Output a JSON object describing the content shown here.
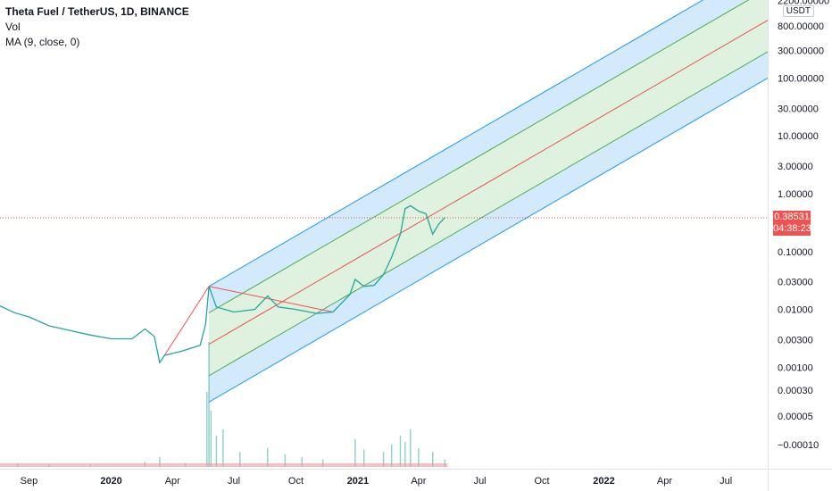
{
  "legend": {
    "title": "Theta Fuel / TetherUS, 1D, BINANCE",
    "vol": "Vol",
    "ma": "MA (9, close, 0)"
  },
  "price_axis": {
    "currency": "USDT",
    "ticks": [
      "2200.00000",
      "800.00000",
      "300.00000",
      "100.00000",
      "30.00000",
      "10.00000",
      "3.00000",
      "1.00000",
      "0.10000",
      "0.03000",
      "0.01000",
      "0.00300",
      "0.00100",
      "0.00030",
      "0.00005",
      "−0.00010"
    ],
    "last_price": "0.38531",
    "countdown": "04:38:23"
  },
  "time_axis": {
    "ticks": [
      {
        "label": "Sep",
        "bold": false
      },
      {
        "label": "2020",
        "bold": true
      },
      {
        "label": "Apr",
        "bold": false
      },
      {
        "label": "Jul",
        "bold": false
      },
      {
        "label": "Oct",
        "bold": false
      },
      {
        "label": "2021",
        "bold": true
      },
      {
        "label": "Apr",
        "bold": false
      },
      {
        "label": "Jul",
        "bold": false
      },
      {
        "label": "Oct",
        "bold": false
      },
      {
        "label": "2022",
        "bold": true
      },
      {
        "label": "Apr",
        "bold": false
      },
      {
        "label": "Jul",
        "bold": false
      }
    ]
  },
  "colors": {
    "up": "#26a69a",
    "down": "#ef5350",
    "channel_outer_fill": "#2196f3",
    "channel_inner_fill": "#4caf50",
    "median_line": "#ef5350",
    "last_price_line": "#ef5350"
  },
  "chart_data": {
    "type": "line",
    "scale": "log",
    "x_range": [
      "2019-07-20",
      "2022-09-01"
    ],
    "y_range": [
      3e-05,
      2200
    ],
    "series": [
      {
        "values": [
          [
            "2019-07-20",
            0.0115
          ],
          [
            "2019-08-10",
            0.0088
          ],
          [
            "2019-09-01",
            0.0074
          ],
          [
            "2019-10-01",
            0.0052
          ],
          [
            "2019-11-01",
            0.0043
          ],
          [
            "2019-12-01",
            0.0036
          ],
          [
            "2020-01-01",
            0.0031
          ],
          [
            "2020-02-01",
            0.0031
          ],
          [
            "2020-02-20",
            0.0046
          ],
          [
            "2020-03-05",
            0.0034
          ],
          [
            "2020-03-13",
            0.0012
          ],
          [
            "2020-03-20",
            0.0016
          ],
          [
            "2020-04-15",
            0.0019
          ],
          [
            "2020-05-12",
            0.0024
          ],
          [
            "2020-05-20",
            0.0055
          ],
          [
            "2020-05-25",
            0.025
          ],
          [
            "2020-06-05",
            0.011
          ],
          [
            "2020-07-01",
            0.009
          ],
          [
            "2020-08-01",
            0.01
          ],
          [
            "2020-08-20",
            0.017
          ],
          [
            "2020-09-05",
            0.011
          ],
          [
            "2020-10-01",
            0.01
          ],
          [
            "2020-11-01",
            0.0085
          ],
          [
            "2020-11-25",
            0.009
          ],
          [
            "2020-12-20",
            0.018
          ],
          [
            "2020-12-28",
            0.033
          ],
          [
            "2021-01-10",
            0.025
          ],
          [
            "2021-01-25",
            0.026
          ],
          [
            "2021-02-08",
            0.04
          ],
          [
            "2021-02-20",
            0.08
          ],
          [
            "2021-03-05",
            0.2
          ],
          [
            "2021-03-12",
            0.55
          ],
          [
            "2021-03-20",
            0.62
          ],
          [
            "2021-04-01",
            0.5
          ],
          [
            "2021-04-12",
            0.45
          ],
          [
            "2021-04-22",
            0.2
          ],
          [
            "2021-05-01",
            0.3
          ],
          [
            "2021-05-10",
            0.3853
          ]
        ]
      }
    ],
    "channel": {
      "start_date": "2020-05-25",
      "end_date": "2022-09-01",
      "median_start": 0.0025,
      "median_end": 1000,
      "inner_factor": 3.5,
      "outer_factor": 10
    },
    "fan_lines": [
      {
        "from": [
          "2020-03-20",
          0.0016
        ],
        "to": [
          "2020-05-25",
          0.025
        ]
      },
      {
        "from": [
          "2020-05-25",
          0.025
        ],
        "to": [
          "2020-11-25",
          0.009
        ]
      }
    ],
    "volume": {
      "max": 100,
      "values": [
        [
          "2019-08-15",
          3
        ],
        [
          "2019-10-01",
          2
        ],
        [
          "2019-12-01",
          2
        ],
        [
          "2020-02-20",
          4
        ],
        [
          "2020-03-13",
          8
        ],
        [
          "2020-04-20",
          3
        ],
        [
          "2020-05-22",
          60
        ],
        [
          "2020-05-25",
          100
        ],
        [
          "2020-05-28",
          45
        ],
        [
          "2020-06-05",
          25
        ],
        [
          "2020-06-15",
          30
        ],
        [
          "2020-07-10",
          12
        ],
        [
          "2020-08-20",
          15
        ],
        [
          "2020-09-15",
          10
        ],
        [
          "2020-10-10",
          8
        ],
        [
          "2020-11-10",
          6
        ],
        [
          "2020-12-28",
          22
        ],
        [
          "2021-01-10",
          14
        ],
        [
          "2021-02-08",
          12
        ],
        [
          "2021-02-20",
          18
        ],
        [
          "2021-03-05",
          25
        ],
        [
          "2021-03-12",
          20
        ],
        [
          "2021-03-20",
          30
        ],
        [
          "2021-04-01",
          15
        ],
        [
          "2021-04-22",
          12
        ],
        [
          "2021-05-10",
          6
        ]
      ]
    }
  }
}
